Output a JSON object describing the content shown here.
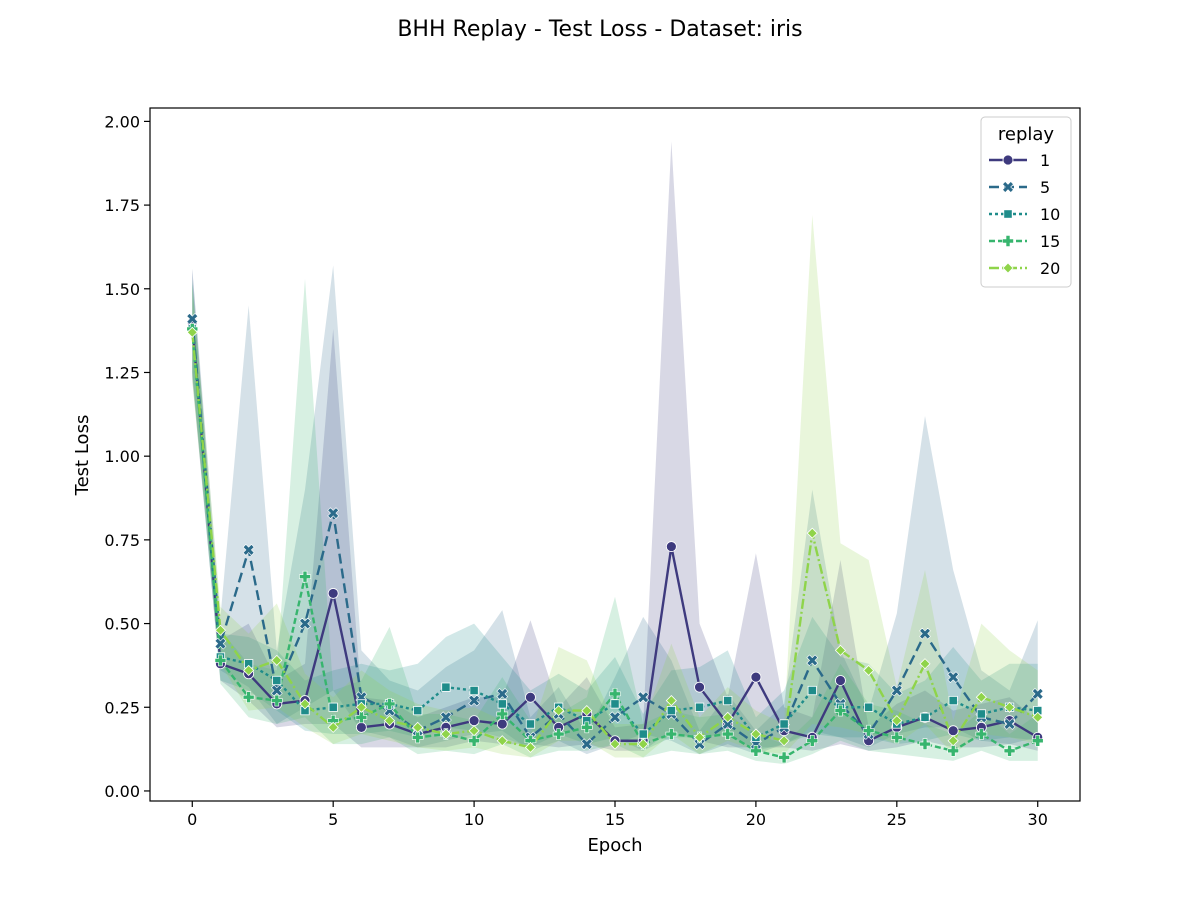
{
  "chart_data": {
    "type": "line",
    "title": "BHH Replay - Test Loss - Dataset: iris",
    "xlabel": "Epoch",
    "ylabel": "Test Loss",
    "xlim": [
      -1.5,
      31.5
    ],
    "ylim": [
      -0.03,
      2.04
    ],
    "xticks": [
      0,
      5,
      10,
      15,
      20,
      25,
      30
    ],
    "xtick_labels": [
      "0",
      "5",
      "10",
      "15",
      "20",
      "25",
      "30"
    ],
    "yticks": [
      0,
      0.25,
      0.5,
      0.75,
      1.0,
      1.25,
      1.5,
      1.75,
      2.0
    ],
    "ytick_labels": [
      "0.00",
      "0.25",
      "0.50",
      "0.75",
      "1.00",
      "1.25",
      "1.50",
      "1.75",
      "2.00"
    ],
    "grid": false,
    "legend": {
      "title": "replay",
      "position": "top-right"
    },
    "x": [
      0,
      1,
      2,
      3,
      4,
      5,
      6,
      7,
      8,
      9,
      10,
      11,
      12,
      13,
      14,
      15,
      16,
      17,
      18,
      19,
      20,
      21,
      22,
      23,
      24,
      25,
      26,
      27,
      28,
      29,
      30
    ],
    "series": [
      {
        "name": "1",
        "color": "#3e3a7e",
        "marker": "circle",
        "dash": "",
        "values": [
          1.4,
          0.38,
          0.35,
          0.26,
          0.27,
          0.59,
          0.19,
          0.2,
          0.17,
          0.19,
          0.21,
          0.2,
          0.28,
          0.19,
          0.23,
          0.15,
          0.15,
          0.73,
          0.31,
          0.2,
          0.34,
          0.18,
          0.16,
          0.33,
          0.15,
          0.19,
          0.22,
          0.18,
          0.19,
          0.21,
          0.16
        ],
        "lower": [
          1.23,
          0.33,
          0.27,
          0.19,
          0.2,
          0.2,
          0.13,
          0.13,
          0.13,
          0.13,
          0.15,
          0.14,
          0.14,
          0.13,
          0.14,
          0.12,
          0.12,
          0.18,
          0.15,
          0.13,
          0.13,
          0.13,
          0.12,
          0.14,
          0.12,
          0.13,
          0.15,
          0.13,
          0.13,
          0.14,
          0.12
        ],
        "upper": [
          1.56,
          0.45,
          0.5,
          0.33,
          0.38,
          1.38,
          0.28,
          0.27,
          0.22,
          0.25,
          0.28,
          0.28,
          0.51,
          0.25,
          0.34,
          0.19,
          0.2,
          1.94,
          0.5,
          0.28,
          0.71,
          0.25,
          0.22,
          0.69,
          0.19,
          0.26,
          0.3,
          0.24,
          0.26,
          0.28,
          0.21
        ]
      },
      {
        "name": "5",
        "color": "#2b6a8a",
        "marker": "x",
        "dash": "10,5",
        "values": [
          1.41,
          0.44,
          0.72,
          0.3,
          0.5,
          0.83,
          0.28,
          0.24,
          0.18,
          0.22,
          0.27,
          0.29,
          0.16,
          0.23,
          0.14,
          0.22,
          0.28,
          0.23,
          0.14,
          0.2,
          0.14,
          0.19,
          0.39,
          0.26,
          0.17,
          0.3,
          0.47,
          0.34,
          0.22,
          0.2,
          0.29
        ],
        "lower": [
          1.25,
          0.36,
          0.31,
          0.2,
          0.25,
          0.3,
          0.18,
          0.16,
          0.13,
          0.15,
          0.17,
          0.18,
          0.12,
          0.15,
          0.11,
          0.14,
          0.17,
          0.15,
          0.11,
          0.14,
          0.11,
          0.14,
          0.18,
          0.16,
          0.13,
          0.17,
          0.19,
          0.19,
          0.15,
          0.14,
          0.16
        ],
        "upper": [
          1.56,
          0.52,
          1.45,
          0.42,
          0.9,
          1.57,
          0.42,
          0.33,
          0.3,
          0.37,
          0.42,
          0.54,
          0.22,
          0.31,
          0.17,
          0.34,
          0.52,
          0.39,
          0.18,
          0.29,
          0.18,
          0.26,
          0.9,
          0.42,
          0.24,
          0.53,
          1.12,
          0.66,
          0.36,
          0.3,
          0.51
        ]
      },
      {
        "name": "10",
        "color": "#1f8c8a",
        "marker": "square",
        "dash": "3,3",
        "values": [
          1.38,
          0.4,
          0.38,
          0.33,
          0.24,
          0.25,
          0.26,
          0.26,
          0.24,
          0.31,
          0.3,
          0.26,
          0.2,
          0.25,
          0.21,
          0.26,
          0.17,
          0.24,
          0.25,
          0.27,
          0.16,
          0.2,
          0.3,
          0.25,
          0.25,
          0.2,
          0.22,
          0.27,
          0.23,
          0.25,
          0.24
        ],
        "lower": [
          1.24,
          0.33,
          0.3,
          0.24,
          0.18,
          0.17,
          0.17,
          0.18,
          0.16,
          0.19,
          0.18,
          0.16,
          0.13,
          0.17,
          0.14,
          0.16,
          0.12,
          0.16,
          0.16,
          0.17,
          0.12,
          0.14,
          0.17,
          0.16,
          0.16,
          0.14,
          0.15,
          0.17,
          0.15,
          0.16,
          0.15
        ],
        "upper": [
          1.52,
          0.47,
          0.46,
          0.42,
          0.33,
          0.36,
          0.38,
          0.36,
          0.38,
          0.46,
          0.5,
          0.4,
          0.3,
          0.35,
          0.3,
          0.4,
          0.23,
          0.36,
          0.37,
          0.42,
          0.22,
          0.3,
          0.52,
          0.4,
          0.38,
          0.29,
          0.33,
          0.43,
          0.33,
          0.38,
          0.38
        ]
      },
      {
        "name": "15",
        "color": "#37b56e",
        "marker": "plus",
        "dash": "6,3",
        "values": [
          1.38,
          0.39,
          0.28,
          0.27,
          0.64,
          0.21,
          0.22,
          0.26,
          0.16,
          0.17,
          0.15,
          0.23,
          0.15,
          0.17,
          0.19,
          0.29,
          0.14,
          0.17,
          0.16,
          0.17,
          0.12,
          0.1,
          0.15,
          0.24,
          0.18,
          0.16,
          0.14,
          0.12,
          0.17,
          0.12,
          0.15
        ],
        "lower": [
          1.25,
          0.32,
          0.22,
          0.2,
          0.22,
          0.14,
          0.14,
          0.16,
          0.11,
          0.12,
          0.11,
          0.14,
          0.1,
          0.12,
          0.12,
          0.14,
          0.1,
          0.12,
          0.11,
          0.12,
          0.09,
          0.08,
          0.11,
          0.15,
          0.12,
          0.11,
          0.1,
          0.09,
          0.12,
          0.09,
          0.09
        ],
        "upper": [
          1.53,
          0.48,
          0.38,
          0.36,
          1.53,
          0.3,
          0.33,
          0.49,
          0.23,
          0.23,
          0.21,
          0.34,
          0.21,
          0.23,
          0.28,
          0.58,
          0.2,
          0.24,
          0.22,
          0.23,
          0.17,
          0.14,
          0.22,
          0.38,
          0.26,
          0.24,
          0.2,
          0.17,
          0.24,
          0.17,
          0.23
        ]
      },
      {
        "name": "20",
        "color": "#8fd44a",
        "marker": "diamond",
        "dash": "10,3,2,3",
        "values": [
          1.37,
          0.48,
          0.36,
          0.39,
          0.26,
          0.19,
          0.25,
          0.21,
          0.19,
          0.17,
          0.18,
          0.15,
          0.13,
          0.24,
          0.24,
          0.14,
          0.14,
          0.27,
          0.16,
          0.22,
          0.17,
          0.15,
          0.77,
          0.42,
          0.36,
          0.21,
          0.38,
          0.15,
          0.28,
          0.25,
          0.22
        ],
        "lower": [
          1.22,
          0.38,
          0.24,
          0.25,
          0.19,
          0.14,
          0.17,
          0.15,
          0.13,
          0.12,
          0.13,
          0.11,
          0.1,
          0.15,
          0.15,
          0.1,
          0.1,
          0.17,
          0.11,
          0.15,
          0.12,
          0.11,
          0.2,
          0.19,
          0.17,
          0.14,
          0.2,
          0.11,
          0.17,
          0.16,
          0.14
        ],
        "upper": [
          1.51,
          0.55,
          0.47,
          0.56,
          0.35,
          0.28,
          0.36,
          0.3,
          0.26,
          0.24,
          0.25,
          0.21,
          0.17,
          0.43,
          0.39,
          0.2,
          0.2,
          0.44,
          0.22,
          0.31,
          0.24,
          0.2,
          1.72,
          0.74,
          0.69,
          0.31,
          0.66,
          0.21,
          0.5,
          0.42,
          0.36
        ]
      }
    ]
  }
}
